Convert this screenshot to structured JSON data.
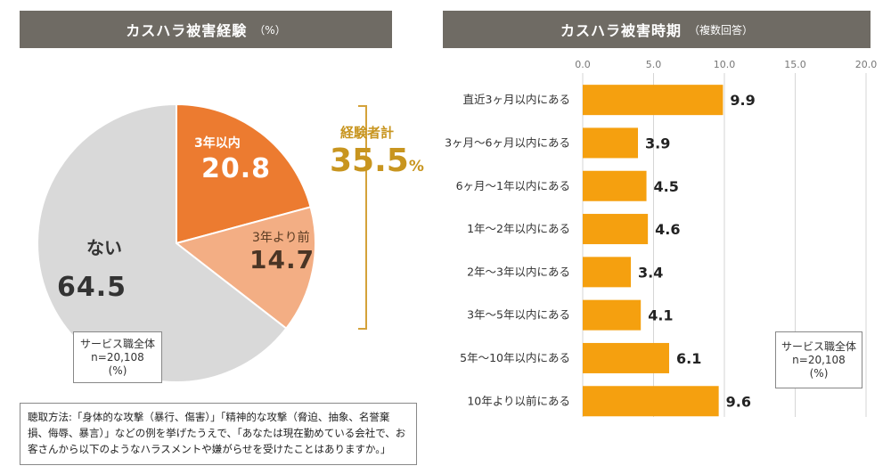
{
  "left": {
    "title": "カスハラ被害経験",
    "title_unit": "（%）",
    "total_label": "経験者計",
    "total_value": "35.5",
    "total_unit": "%",
    "slice_labels": [
      "3年以内",
      "3年より前",
      "ない"
    ],
    "slice_values_text": [
      "20.8",
      "14.7",
      "64.5"
    ],
    "sample_box": [
      "サービス職全体",
      "n=20,108",
      "(%)"
    ],
    "method_text": "聴取方法:「身体的な攻撃（暴行、傷害）」「精神的な攻撃（脅迫、抽象、名誉棄損、侮辱、暴言）」などの例を挙げたうえで、「あなたは現在勤めている会社で、お客さんから以下のようなハラスメントや嫌がらせを受けたことはありますか。」"
  },
  "right": {
    "title": "カスハラ被害時期",
    "title_unit": "（複数回答）",
    "sample_box": [
      "サービス職全体",
      "n=20,108",
      "(%)"
    ]
  },
  "chart_data": [
    {
      "type": "pie",
      "title": "カスハラ被害経験",
      "categories": [
        "3年以内",
        "3年より前",
        "ない"
      ],
      "values": [
        20.8,
        14.7,
        64.5
      ],
      "unit": "%",
      "colors": [
        "#ec7b30",
        "#f3ae84",
        "#d9d9d9"
      ]
    },
    {
      "type": "bar",
      "orientation": "horizontal",
      "title": "カスハラ被害時期",
      "categories": [
        "直近3ヶ月以内にある",
        "3ヶ月～6ヶ月以内にある",
        "6ヶ月～1年以内にある",
        "1年～2年以内にある",
        "2年～3年以内にある",
        "3年～5年以内にある",
        "5年～10年以内にある",
        "10年より以前にある"
      ],
      "values": [
        9.9,
        3.9,
        4.5,
        4.6,
        3.4,
        4.1,
        6.1,
        9.6
      ],
      "xlim": [
        0,
        20
      ],
      "ticks": [
        "0.0",
        "5.0",
        "10.0",
        "15.0",
        "20.0"
      ],
      "bar_color": "#f5a00f",
      "grid": true
    }
  ]
}
